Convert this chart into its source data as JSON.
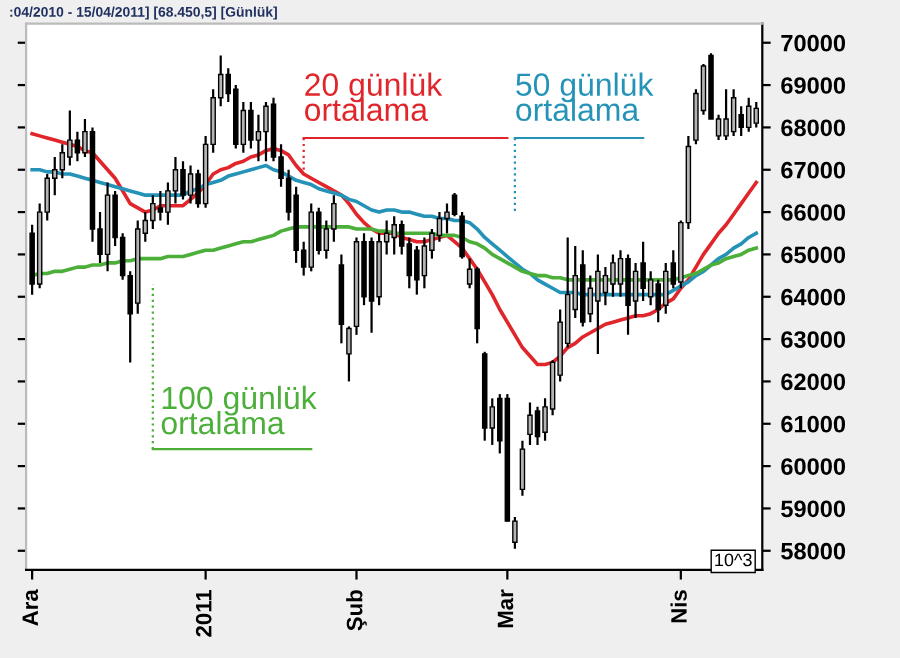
{
  "chart_data": {
    "type": "candlestick",
    "title": ":04/2010 - 15/04/2011] [68.450,5] [Günlük]",
    "categories": [
      "Ara",
      null,
      null,
      null,
      null,
      null,
      null,
      null,
      null,
      null,
      null,
      null,
      null,
      null,
      null,
      null,
      null,
      null,
      null,
      null,
      null,
      null,
      null,
      "2011",
      null,
      null,
      null,
      null,
      null,
      null,
      null,
      null,
      null,
      null,
      null,
      null,
      null,
      null,
      null,
      null,
      null,
      null,
      null,
      "Şub",
      null,
      null,
      null,
      null,
      null,
      null,
      null,
      null,
      null,
      null,
      null,
      null,
      null,
      null,
      null,
      null,
      null,
      null,
      null,
      "Mar",
      null,
      null,
      null,
      null,
      null,
      null,
      null,
      null,
      null,
      null,
      null,
      null,
      null,
      null,
      null,
      null,
      null,
      null,
      null,
      null,
      null,
      null,
      "Nis",
      null,
      null,
      null,
      null,
      null,
      null,
      null,
      null,
      null,
      null
    ],
    "series": [
      {
        "ohlc": [
          [
            65500,
            65700,
            64050,
            64300
          ],
          [
            64300,
            66200,
            64200,
            66000
          ],
          [
            66000,
            66900,
            65800,
            66800
          ],
          [
            66800,
            67300,
            66400,
            67000
          ],
          [
            67000,
            67600,
            66800,
            67400
          ],
          [
            67300,
            68400,
            67100,
            67700
          ],
          [
            67700,
            67900,
            67200,
            67400
          ],
          [
            67400,
            68200,
            67300,
            67900
          ],
          [
            67900,
            68000,
            65300,
            65600
          ],
          [
            65600,
            66000,
            64800,
            65000
          ],
          [
            65000,
            66700,
            64600,
            66400
          ],
          [
            66400,
            66500,
            65200,
            65400
          ],
          [
            65400,
            65500,
            64400,
            64500
          ],
          [
            64500,
            64600,
            62450,
            63600
          ],
          [
            63850,
            65800,
            63600,
            65600
          ],
          [
            65500,
            66000,
            65300,
            65800
          ],
          [
            65800,
            66400,
            65600,
            66200
          ],
          [
            66100,
            66500,
            65800,
            66000
          ],
          [
            66000,
            66700,
            65700,
            66500
          ],
          [
            66500,
            67300,
            66200,
            67000
          ],
          [
            67000,
            67200,
            66300,
            66400
          ],
          [
            66400,
            67100,
            66200,
            66900
          ],
          [
            66900,
            67000,
            66100,
            66200
          ],
          [
            66200,
            67800,
            66100,
            67600
          ],
          [
            67600,
            68900,
            67400,
            68700
          ],
          [
            68700,
            69700,
            68500,
            69250
          ],
          [
            69250,
            69400,
            68600,
            68800
          ],
          [
            68900,
            69000,
            67500,
            67600
          ],
          [
            67600,
            68600,
            67400,
            68400
          ],
          [
            68400,
            68600,
            67500,
            67700
          ],
          [
            67700,
            68300,
            67200,
            67900
          ],
          [
            67900,
            68600,
            67200,
            68500
          ],
          [
            68550,
            68700,
            67200,
            67300
          ],
          [
            67300,
            67600,
            66600,
            66800
          ],
          [
            66800,
            67000,
            65800,
            66000
          ],
          [
            66400,
            66600,
            64800,
            65100
          ],
          [
            65100,
            65300,
            64500,
            64700
          ],
          [
            64700,
            66200,
            64600,
            66000
          ],
          [
            66000,
            66100,
            65000,
            65100
          ],
          [
            65100,
            65800,
            64900,
            65600
          ],
          [
            65600,
            66400,
            65300,
            66200
          ],
          [
            64750,
            65000,
            62900,
            63350
          ],
          [
            62650,
            63300,
            62000,
            63250
          ],
          [
            63300,
            65400,
            63100,
            65300
          ],
          [
            65300,
            65500,
            63800,
            64000
          ],
          [
            65300,
            65400,
            63150,
            63900
          ],
          [
            64000,
            65500,
            63800,
            65300
          ],
          [
            65300,
            65800,
            65000,
            65500
          ],
          [
            65400,
            65900,
            65000,
            65700
          ],
          [
            65700,
            65800,
            65000,
            65200
          ],
          [
            65250,
            65400,
            64200,
            64500
          ],
          [
            65100,
            65200,
            64050,
            64400
          ],
          [
            64500,
            65400,
            64200,
            65200
          ],
          [
            65100,
            65600,
            64900,
            65500
          ],
          [
            65450,
            66000,
            65300,
            65850
          ],
          [
            65850,
            66200,
            65500,
            66000
          ],
          [
            66400,
            66450,
            65900,
            65950
          ],
          [
            65900,
            66000,
            64900,
            64950
          ],
          [
            64300,
            64900,
            64200,
            64650
          ],
          [
            64650,
            64700,
            62900,
            63250
          ],
          [
            62650,
            62700,
            60600,
            60900
          ],
          [
            60900,
            61600,
            60500,
            61400
          ],
          [
            61600,
            61700,
            60300,
            60600
          ],
          [
            61600,
            61700,
            58700,
            58700
          ],
          [
            58200,
            58800,
            58050,
            58700
          ],
          [
            59450,
            60600,
            59300,
            60400
          ],
          [
            60750,
            61500,
            60500,
            61200
          ],
          [
            61300,
            61400,
            60500,
            60700
          ],
          [
            60800,
            61600,
            60600,
            61400
          ],
          [
            61350,
            62500,
            61200,
            62450
          ],
          [
            62150,
            63700,
            62000,
            63400
          ],
          [
            62900,
            65400,
            62800,
            64050
          ],
          [
            63700,
            65200,
            63500,
            64500
          ],
          [
            64750,
            65100,
            63300,
            63400
          ],
          [
            63600,
            64500,
            63400,
            64200
          ],
          [
            63900,
            65000,
            62650,
            64600
          ],
          [
            64100,
            64700,
            63800,
            64500
          ],
          [
            64300,
            65000,
            64000,
            64800
          ],
          [
            64300,
            65100,
            64000,
            64900
          ],
          [
            64900,
            65000,
            63100,
            63800
          ],
          [
            63900,
            64800,
            63500,
            64600
          ],
          [
            64800,
            65300,
            63900,
            64200
          ],
          [
            64000,
            64600,
            63800,
            64400
          ],
          [
            64300,
            64400,
            63400,
            63700
          ],
          [
            63800,
            64800,
            63600,
            64600
          ],
          [
            64800,
            65100,
            64200,
            64300
          ],
          [
            64350,
            65800,
            64200,
            65750
          ],
          [
            65750,
            67800,
            65600,
            67550
          ],
          [
            67700,
            68900,
            67600,
            68800
          ],
          [
            68400,
            69500,
            68300,
            69450
          ],
          [
            69700,
            69750,
            68200,
            68200
          ],
          [
            67800,
            68300,
            67700,
            68200
          ],
          [
            67800,
            68900,
            67700,
            68200
          ],
          [
            67900,
            68900,
            67800,
            68700
          ],
          [
            68300,
            68500,
            67800,
            68000
          ],
          [
            68000,
            68700,
            67900,
            68500
          ],
          [
            68100,
            68600,
            68000,
            68450
          ]
        ],
        "colors": [
          "#000000",
          "#b4b4b4",
          "#b4b4b4",
          "#b4b4b4",
          "#b4b4b4",
          "#b4b4b4",
          "#000000",
          "#b4b4b4",
          "#000000",
          "#000000",
          "#b4b4b4",
          "#000000",
          "#000000",
          "#000000",
          "#b4b4b4",
          "#b4b4b4",
          "#b4b4b4",
          "#000000",
          "#b4b4b4",
          "#b4b4b4",
          "#000000",
          "#b4b4b4",
          "#000000",
          "#b4b4b4",
          "#b4b4b4",
          "#b4b4b4",
          "#000000",
          "#000000",
          "#b4b4b4",
          "#000000",
          "#b4b4b4",
          "#b4b4b4",
          "#000000",
          "#000000",
          "#000000",
          "#000000",
          "#000000",
          "#b4b4b4",
          "#000000",
          "#b4b4b4",
          "#b4b4b4",
          "#000000",
          "#b4b4b4",
          "#b4b4b4",
          "#000000",
          "#000000",
          "#b4b4b4",
          "#b4b4b4",
          "#b4b4b4",
          "#000000",
          "#000000",
          "#000000",
          "#b4b4b4",
          "#b4b4b4",
          "#b4b4b4",
          "#b4b4b4",
          "#000000",
          "#000000",
          "#b4b4b4",
          "#000000",
          "#000000",
          "#b4b4b4",
          "#000000",
          "#000000",
          "#b4b4b4",
          "#b4b4b4",
          "#b4b4b4",
          "#000000",
          "#b4b4b4",
          "#b4b4b4",
          "#b4b4b4",
          "#b4b4b4",
          "#b4b4b4",
          "#000000",
          "#b4b4b4",
          "#b4b4b4",
          "#b4b4b4",
          "#b4b4b4",
          "#b4b4b4",
          "#000000",
          "#b4b4b4",
          "#000000",
          "#b4b4b4",
          "#000000",
          "#b4b4b4",
          "#000000",
          "#b4b4b4",
          "#b4b4b4",
          "#b4b4b4",
          "#b4b4b4",
          "#000000",
          "#b4b4b4",
          "#b4b4b4",
          "#b4b4b4",
          "#000000",
          "#b4b4b4",
          "#b4b4b4"
        ]
      },
      {
        "type": "line",
        "color": "#e0262a",
        "values": [
          67850,
          67800,
          67750,
          67700,
          67650,
          67600,
          67550,
          67450,
          67400,
          67200,
          67000,
          66800,
          66500,
          66200,
          66100,
          66000,
          66050,
          66150,
          66150,
          66150,
          66150,
          66300,
          66450,
          66650,
          66900,
          67000,
          67050,
          67150,
          67200,
          67300,
          67350,
          67450,
          67500,
          67450,
          67350,
          67100,
          66900,
          66800,
          66700,
          66600,
          66500,
          66400,
          66200,
          65950,
          65750,
          65600,
          65500,
          65500,
          65500,
          65400,
          65350,
          65300,
          65300,
          65350,
          65400,
          65450,
          65300,
          65150,
          64900,
          64650,
          64350,
          64050,
          63700,
          63400,
          63100,
          62800,
          62600,
          62400,
          62400,
          62450,
          62600,
          62800,
          62900,
          63050,
          63150,
          63250,
          63350,
          63400,
          63450,
          63500,
          63550,
          63550,
          63600,
          63700,
          63850,
          63950,
          64200,
          64400,
          64700,
          65000,
          65250,
          65500,
          65700,
          65950,
          66200,
          66450,
          66700
        ]
      },
      {
        "type": "line",
        "color": "#2593b8",
        "values": [
          67000,
          67000,
          66950,
          66950,
          66900,
          66900,
          66850,
          66800,
          66750,
          66700,
          66650,
          66600,
          66550,
          66500,
          66450,
          66400,
          66400,
          66400,
          66400,
          66400,
          66400,
          66500,
          66550,
          66650,
          66700,
          66750,
          66850,
          66900,
          66950,
          67000,
          67050,
          67100,
          67000,
          66950,
          66850,
          66750,
          66700,
          66650,
          66550,
          66500,
          66450,
          66400,
          66300,
          66250,
          66150,
          66050,
          66000,
          66050,
          66050,
          66000,
          66000,
          65950,
          65900,
          65900,
          65850,
          65850,
          65800,
          65800,
          65750,
          65600,
          65400,
          65250,
          65100,
          64950,
          64800,
          64650,
          64550,
          64400,
          64300,
          64200,
          64100,
          64100,
          64100,
          64050,
          64050,
          64050,
          64050,
          64050,
          64050,
          64050,
          64050,
          64050,
          64050,
          64050,
          64050,
          64150,
          64250,
          64350,
          64500,
          64600,
          64750,
          64900,
          65000,
          65150,
          65250,
          65400,
          65500
        ]
      },
      {
        "type": "line",
        "color": "#4caf3a",
        "values": [
          64500,
          64550,
          64550,
          64600,
          64600,
          64650,
          64700,
          64700,
          64750,
          64750,
          64800,
          64800,
          64850,
          64850,
          64900,
          64900,
          64900,
          64900,
          64950,
          64950,
          64950,
          65000,
          65050,
          65100,
          65100,
          65150,
          65200,
          65250,
          65300,
          65300,
          65350,
          65400,
          65450,
          65550,
          65600,
          65650,
          65650,
          65650,
          65650,
          65650,
          65650,
          65650,
          65650,
          65600,
          65600,
          65600,
          65550,
          65550,
          65500,
          65500,
          65500,
          65500,
          65500,
          65500,
          65450,
          65450,
          65450,
          65400,
          65300,
          65250,
          65150,
          65000,
          64900,
          64800,
          64700,
          64600,
          64550,
          64500,
          64500,
          64450,
          64450,
          64400,
          64400,
          64400,
          64400,
          64400,
          64400,
          64400,
          64400,
          64400,
          64400,
          64400,
          64400,
          64400,
          64400,
          64400,
          64450,
          64500,
          64550,
          64650,
          64750,
          64800,
          64900,
          64950,
          65000,
          65100,
          65150
        ]
      }
    ],
    "annotations": [
      "20 günlük\nortalama",
      "50 günlük\nortalama",
      "100 günlük\nortalama",
      "10^3"
    ],
    "ylim": [
      57550,
      70450
    ],
    "yticks": [
      58000,
      59000,
      60000,
      61000,
      62000,
      63000,
      64000,
      65000,
      66000,
      67000,
      68000,
      69000,
      70000
    ],
    "grid": false,
    "legend": false
  }
}
